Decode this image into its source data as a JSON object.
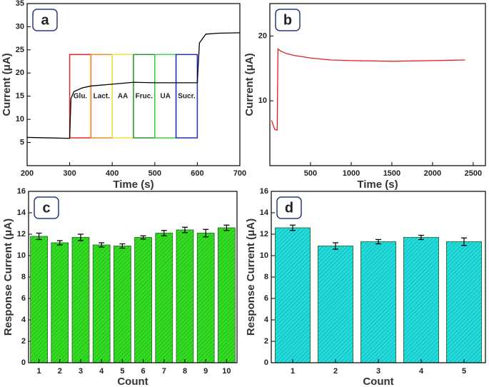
{
  "chart_data": [
    {
      "type": "line",
      "label": "a",
      "xlabel": "Time (s)",
      "ylabel": "Current (μA)",
      "x": [
        200,
        250,
        299,
        300,
        303,
        310,
        330,
        350,
        400,
        450,
        500,
        550,
        599,
        600,
        605,
        620,
        650,
        700
      ],
      "series": [
        {
          "color": "#000000",
          "values": [
            6.1,
            6.0,
            5.9,
            5.9,
            14.5,
            16,
            16.8,
            17.2,
            17.6,
            18,
            17.9,
            17.9,
            17.9,
            17.9,
            26.5,
            28.4,
            28.6,
            28.7
          ]
        }
      ],
      "xlim": [
        200,
        700
      ],
      "xticks": [
        200,
        300,
        400,
        500,
        600,
        700
      ],
      "ylim": [
        0,
        35
      ],
      "yticks": [
        5,
        10,
        15,
        20,
        25,
        30,
        35
      ],
      "regions": [
        {
          "text": "Glu.",
          "x": [
            300,
            350
          ],
          "y": [
            6,
            24
          ],
          "color": "#e02828"
        },
        {
          "text": "Lact.",
          "x": [
            350,
            400
          ],
          "y": [
            6,
            24
          ],
          "color": "#f08c28"
        },
        {
          "text": "AA",
          "x": [
            400,
            450
          ],
          "y": [
            6,
            24
          ],
          "color": "#f0e040"
        },
        {
          "text": "Fruc.",
          "x": [
            450,
            500
          ],
          "y": [
            6,
            24
          ],
          "color": "#209a30"
        },
        {
          "text": "UA",
          "x": [
            500,
            550
          ],
          "y": [
            6,
            24
          ],
          "color": "#40d040"
        },
        {
          "text": "Sucr.",
          "x": [
            550,
            600
          ],
          "y": [
            6,
            24
          ],
          "color": "#2030c0"
        }
      ]
    },
    {
      "type": "line",
      "label": "b",
      "xlabel": "Time (s)",
      "ylabel": "Current (μA)",
      "x": [
        20,
        60,
        80,
        90,
        100,
        130,
        200,
        300,
        500,
        750,
        1000,
        1500,
        2000,
        2400
      ],
      "series": [
        {
          "color": "#e02020",
          "values": [
            7,
            5.6,
            5.5,
            5.5,
            18,
            17.7,
            17.3,
            17,
            16.6,
            16.3,
            16.2,
            16.1,
            16.2,
            16.3
          ]
        }
      ],
      "xlim": [
        0,
        2650
      ],
      "xticks": [
        500,
        1000,
        1500,
        2000,
        2500
      ],
      "ylim": [
        0,
        25
      ],
      "yticks": [
        10,
        20
      ]
    },
    {
      "type": "bar",
      "label": "c",
      "xlabel": "Count",
      "ylabel": "Response Current (μA)",
      "categories": [
        "1",
        "2",
        "3",
        "4",
        "5",
        "6",
        "7",
        "8",
        "9",
        "10"
      ],
      "values": [
        11.8,
        11.2,
        11.7,
        11.0,
        10.9,
        11.7,
        12.1,
        12.4,
        12.1,
        12.6
      ],
      "errors": [
        0.3,
        0.2,
        0.3,
        0.2,
        0.2,
        0.15,
        0.25,
        0.25,
        0.35,
        0.25
      ],
      "color": "#33dd22",
      "ylim": [
        0,
        16
      ],
      "yticks": [
        0,
        2,
        4,
        6,
        8,
        10,
        12,
        14,
        16
      ]
    },
    {
      "type": "bar",
      "label": "d",
      "xlabel": "Count",
      "ylabel": "Response Current (μA)",
      "categories": [
        "1",
        "2",
        "3",
        "4",
        "5"
      ],
      "values": [
        12.6,
        10.9,
        11.3,
        11.7,
        11.3
      ],
      "errors": [
        0.25,
        0.3,
        0.2,
        0.2,
        0.35
      ],
      "color": "#22dddd",
      "ylim": [
        0,
        16
      ],
      "yticks": [
        0,
        2,
        4,
        6,
        8,
        10,
        12,
        14,
        16
      ]
    }
  ]
}
